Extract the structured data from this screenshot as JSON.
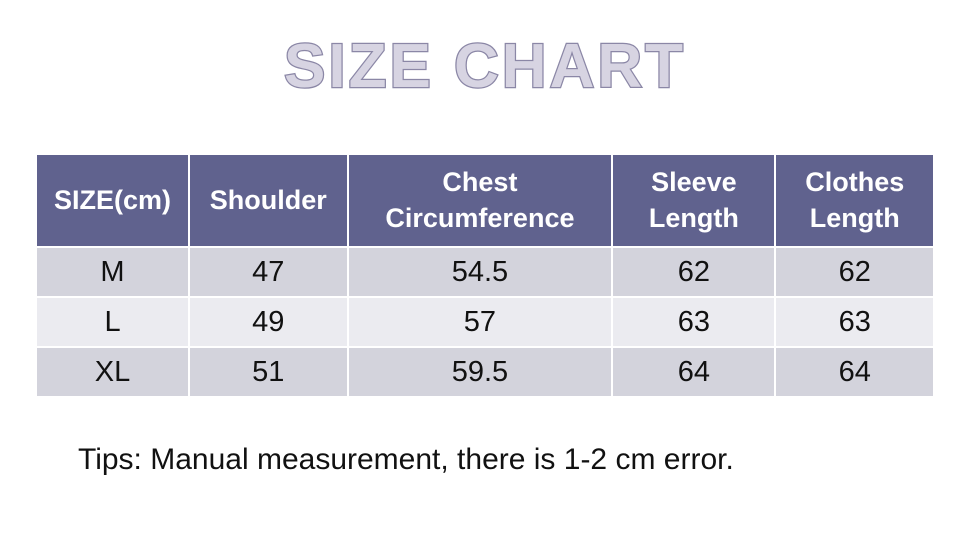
{
  "title": "SIZE CHART",
  "table": {
    "headers": [
      "SIZE(cm)",
      "Shoulder",
      "Chest Circumference",
      "Sleeve Length",
      "Clothes Length"
    ],
    "rows": [
      [
        "M",
        "47",
        "54.5",
        "62",
        "62"
      ],
      [
        "L",
        "49",
        "57",
        "63",
        "63"
      ],
      [
        "XL",
        "51",
        "59.5",
        "64",
        "64"
      ]
    ]
  },
  "tips": "Tips: Manual measurement, there is 1-2 cm error.",
  "colors": {
    "header_bg": "#60628e",
    "header_text": "#ffffff",
    "row_odd_bg": "#d3d3dc",
    "row_even_bg": "#ebebf0",
    "title_fill": "#d7d4e2",
    "title_outline": "#8b87a6",
    "body_text": "#111111",
    "gap_color": "#ffffff"
  },
  "chart_data": {
    "type": "table",
    "title": "SIZE CHART",
    "unit": "cm",
    "columns": [
      "SIZE(cm)",
      "Shoulder",
      "Chest Circumference",
      "Sleeve Length",
      "Clothes Length"
    ],
    "rows": [
      {
        "size": "M",
        "shoulder": 47,
        "chest_circumference": 54.5,
        "sleeve_length": 62,
        "clothes_length": 62
      },
      {
        "size": "L",
        "shoulder": 49,
        "chest_circumference": 57,
        "sleeve_length": 63,
        "clothes_length": 63
      },
      {
        "size": "XL",
        "shoulder": 51,
        "chest_circumference": 59.5,
        "sleeve_length": 64,
        "clothes_length": 64
      }
    ],
    "footnote": "Tips: Manual measurement, there is 1-2 cm error."
  }
}
